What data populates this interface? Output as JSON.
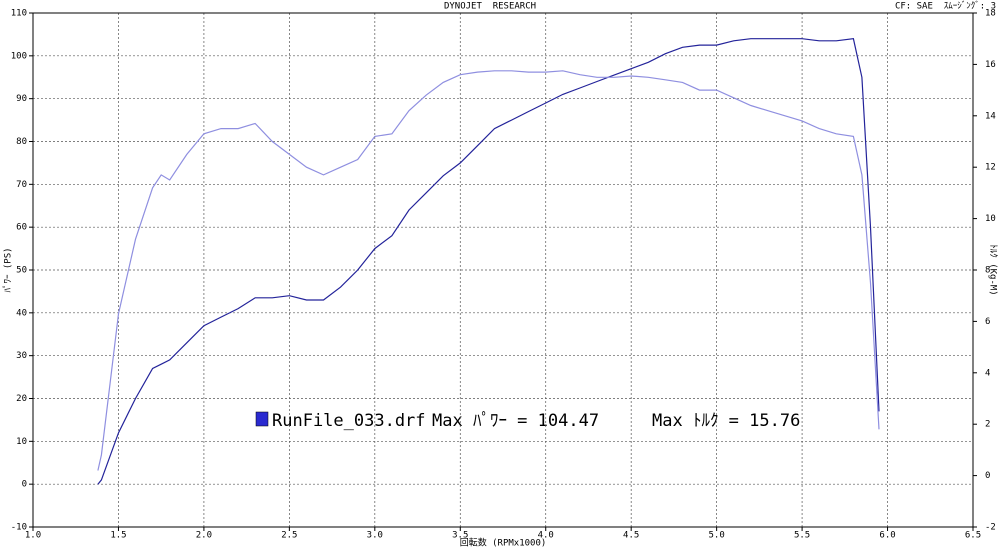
{
  "chart_data": {
    "type": "line",
    "title": "DYNOJET  RESEARCH",
    "subtitle": "CF: SAE  ｽﾑｰｼﾞﾝｸﾞ: 3",
    "xlabel": "回転数 (RPMx1000)",
    "ylabel": "ﾊﾟﾜｰ (PS)",
    "y2label": "ﾄﾙｸ (Kg-M)",
    "annotations": [
      "Max ﾊﾟﾜｰ = 104.47",
      "Max ﾄﾙｸ = 15.76"
    ],
    "legend_label": "RunFile_033.drf",
    "grid": true,
    "xlim": [
      1,
      6.5
    ],
    "xticks": [
      {
        "value": 1,
        "label": "1.0"
      },
      1.5,
      {
        "value": 2,
        "label": "2.0"
      },
      2.5,
      {
        "value": 3,
        "label": "3.0"
      },
      3.5,
      {
        "value": 4,
        "label": "4.0"
      },
      4.5,
      {
        "value": 5,
        "label": "5.0"
      },
      5.5,
      {
        "value": 6,
        "label": "6.0"
      },
      6.5
    ],
    "ylim": [
      -10,
      110
    ],
    "yticks": [
      -10,
      0,
      10,
      20,
      30,
      40,
      50,
      60,
      70,
      80,
      90,
      100,
      110
    ],
    "y2lim": [
      -2,
      18
    ],
    "y2ticks": [
      -2,
      0,
      2,
      4,
      6,
      8,
      10,
      12,
      14,
      16,
      18
    ],
    "x": [
      1.38,
      1.4,
      1.5,
      1.6,
      1.7,
      1.75,
      1.8,
      1.9,
      2.0,
      2.1,
      2.2,
      2.3,
      2.4,
      2.5,
      2.6,
      2.7,
      2.8,
      2.9,
      3.0,
      3.1,
      3.2,
      3.3,
      3.4,
      3.5,
      3.6,
      3.7,
      3.8,
      3.9,
      4.0,
      4.1,
      4.2,
      4.3,
      4.4,
      4.5,
      4.6,
      4.7,
      4.8,
      4.9,
      5.0,
      5.1,
      5.2,
      5.3,
      5.4,
      5.5,
      5.6,
      5.7,
      5.8,
      5.85,
      5.9,
      5.95
    ],
    "series": [
      {
        "name": "ﾊﾟﾜｰ",
        "color": "#23239a",
        "axis": "y",
        "values": [
          0,
          1,
          12,
          20,
          27,
          28,
          29,
          33,
          37,
          39,
          41,
          43.5,
          43.5,
          44,
          43,
          43,
          46,
          50,
          55,
          58,
          64,
          68,
          72,
          75,
          79,
          83,
          85,
          87,
          89,
          91,
          92.5,
          94,
          95.5,
          97,
          98.5,
          100.5,
          102,
          102.5,
          102.5,
          103.5,
          104,
          104,
          104,
          104,
          103.5,
          103.5,
          104,
          95,
          60,
          17
        ]
      },
      {
        "name": "ﾄﾙｸ",
        "color": "#8f8fe0",
        "axis": "y2",
        "values": [
          0.2,
          0.8,
          6.3,
          9.2,
          11.2,
          11.7,
          11.5,
          12.5,
          13.3,
          13.5,
          13.5,
          13.7,
          13,
          12.5,
          12,
          11.7,
          12,
          12.3,
          13.2,
          13.3,
          14.2,
          14.8,
          15.3,
          15.6,
          15.7,
          15.75,
          15.75,
          15.7,
          15.7,
          15.75,
          15.6,
          15.5,
          15.5,
          15.55,
          15.5,
          15.4,
          15.3,
          15,
          15,
          14.7,
          14.4,
          14.2,
          14,
          13.8,
          13.5,
          13.3,
          13.2,
          11.7,
          7.5,
          1.8
        ]
      }
    ]
  }
}
